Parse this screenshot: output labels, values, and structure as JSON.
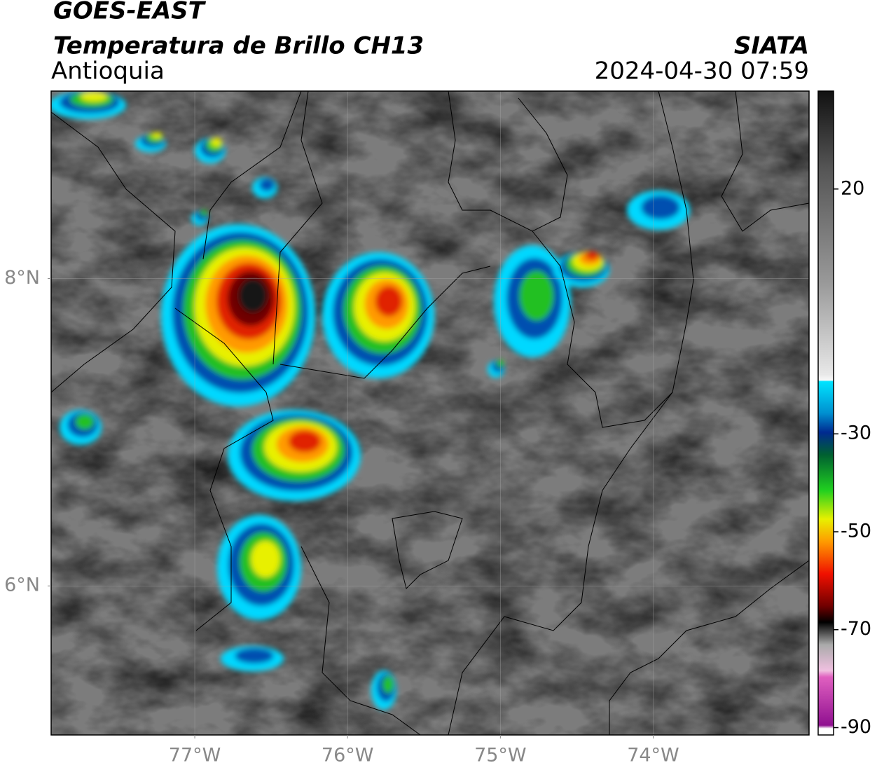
{
  "header": {
    "title": "GOES-EAST",
    "product": "Temperatura de Brillo CH13",
    "region": "Antioquia",
    "source": "SIATA",
    "datetime": "2024-04-30 07:59"
  },
  "map": {
    "xlim": [
      -77.94,
      -72.98
    ],
    "ylim": [
      5.03,
      9.22
    ],
    "xticks": [
      {
        "value": -77,
        "label": "77°W"
      },
      {
        "value": -76,
        "label": "76°W"
      },
      {
        "value": -75,
        "label": "75°W"
      },
      {
        "value": -74,
        "label": "74°W"
      }
    ],
    "yticks": [
      {
        "value": 6,
        "label": "6°N"
      },
      {
        "value": 8,
        "label": "8°N"
      }
    ],
    "grid": true
  },
  "colorbar": {
    "clim": [
      -91.5,
      40
    ],
    "ticks": [
      20,
      -30,
      -50,
      -70,
      -90
    ]
  }
}
